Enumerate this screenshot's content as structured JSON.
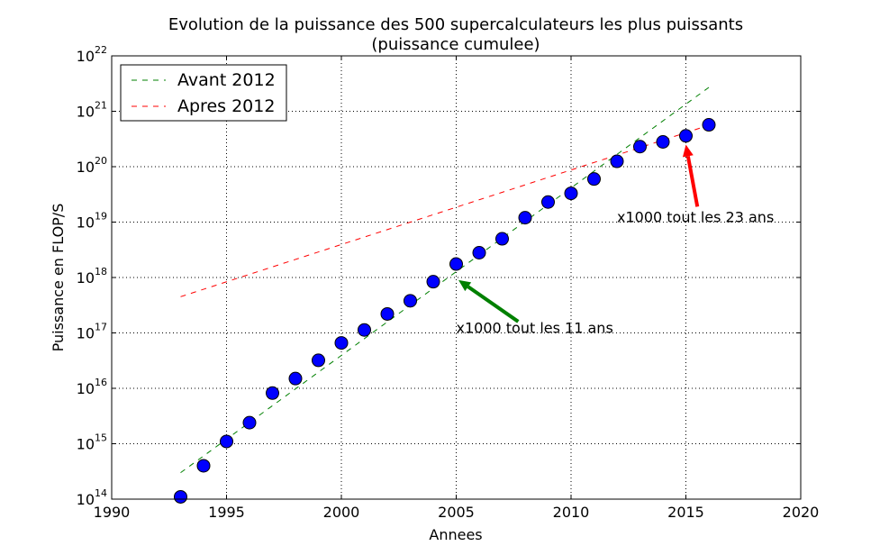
{
  "chart_data": {
    "type": "scatter",
    "title": "Evolution de la puissance des 500 supercalculateurs les plus puissants",
    "subtitle": "(puissance cumulee)",
    "xlabel": "Annees",
    "ylabel": "Puissance en FLOP/S",
    "xlim": [
      1990,
      2020
    ],
    "ylim_exp": [
      14,
      22
    ],
    "y_scale": "log",
    "grid": true,
    "x_ticks": [
      "1990",
      "1995",
      "2000",
      "2005",
      "2010",
      "2015",
      "2020"
    ],
    "y_tick_base": "10",
    "y_tick_exps": [
      "14",
      "15",
      "16",
      "17",
      "18",
      "19",
      "20",
      "21",
      "22"
    ],
    "legend_position": "top-left",
    "points": {
      "x": [
        1993,
        1994,
        1995,
        1996,
        1997,
        1998,
        1999,
        2000,
        2001,
        2002,
        2003,
        2004,
        2005,
        2006,
        2007,
        2008,
        2009,
        2010,
        2011,
        2012,
        2013,
        2014,
        2015,
        2016
      ],
      "y": [
        110000000000000.0,
        400000000000000.0,
        1100000000000000.0,
        2400000000000000.0,
        8200000000000000.0,
        1.5e+16,
        3.2e+16,
        6.6e+16,
        1.13e+17,
        2.2e+17,
        3.8e+17,
        8.4e+17,
        1.75e+18,
        2.8e+18,
        5e+18,
        1.2e+19,
        2.3e+19,
        3.3e+19,
        6e+19,
        1.25e+20,
        2.3e+20,
        2.8e+20,
        3.6e+20,
        5.7e+20
      ],
      "color": "#0000ff"
    },
    "series": [
      {
        "name": "Avant 2012",
        "x": [
          1993,
          2016
        ],
        "y": [
          300000000000000.0,
          2.7e+21
        ],
        "color": "#008000",
        "style": "dashed"
      },
      {
        "name": "Apres 2012",
        "x": [
          1993,
          2016
        ],
        "y": [
          4.5e+17,
          5.6e+20
        ],
        "color": "#ff0000",
        "style": "dashed"
      }
    ],
    "annotations": [
      {
        "text": "x1000 tout les 11 ans",
        "text_x": 2005.0,
        "text_y": 1e+17,
        "arrow_from_x": 2007.7,
        "arrow_from_y": 1.6e+17,
        "arrow_to_x": 2005.1,
        "arrow_to_y": 9e+17,
        "color": "#008000"
      },
      {
        "text": "x1000 tout les 23 ans",
        "text_x": 2012.0,
        "text_y": 1e+19,
        "arrow_from_x": 2015.5,
        "arrow_from_y": 1.9e+19,
        "arrow_to_x": 2015.0,
        "arrow_to_y": 2.5e+20,
        "color": "#ff0000"
      }
    ]
  }
}
